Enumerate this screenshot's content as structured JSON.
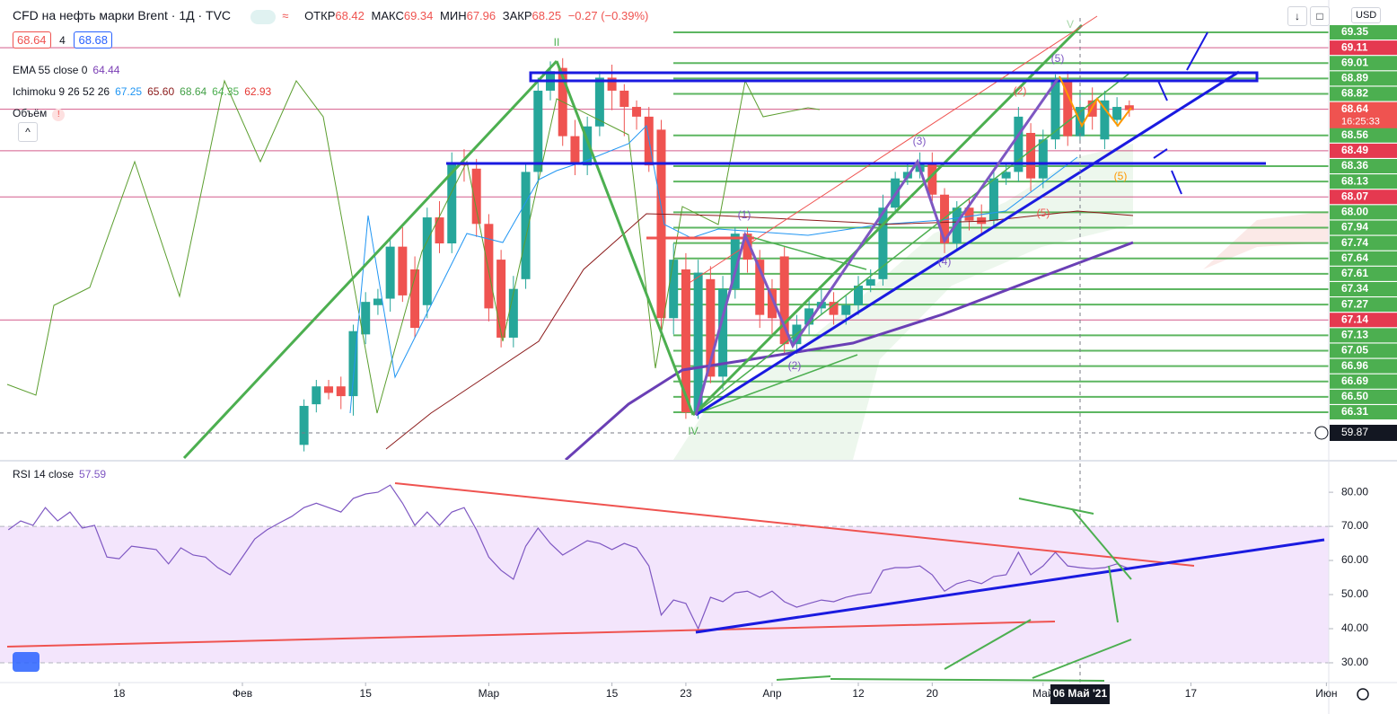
{
  "chart_data": {
    "type": "candlestick",
    "title": "CFD на нефть марки Brent · 1Д · TVC",
    "ohlc_header": {
      "open_label": "ОТКР",
      "open": "68.42",
      "high_label": "МАКС",
      "high": "69.34",
      "low_label": "МИН",
      "low": "67.96",
      "close_label": "ЗАКР",
      "close": "68.25",
      "change": "−0.27 (−0.39%)"
    },
    "sell": "68.64",
    "spread": "4",
    "buy": "68.68",
    "indicators": [
      {
        "name": "EMA 55 close 0",
        "values": [
          {
            "text": "64.44",
            "color": "#7b3fb5"
          }
        ]
      },
      {
        "name": "Ichimoku 9 26 52 26",
        "values": [
          {
            "text": "67.25",
            "color": "#2196f3"
          },
          {
            "text": "65.60",
            "color": "#8b1a1a"
          },
          {
            "text": "68.64",
            "color": "#43a047"
          },
          {
            "text": "64.35",
            "color": "#4caf50"
          },
          {
            "text": "62.93",
            "color": "#e53935"
          }
        ]
      },
      {
        "name": "Объём",
        "values": []
      }
    ],
    "currency": "USD",
    "ylim": [
      59.04,
      73.19
    ],
    "candles": {
      "x": [
        5,
        6,
        7,
        8,
        9,
        10,
        11,
        12,
        13,
        14,
        15,
        16,
        17,
        18,
        19,
        20,
        21,
        22,
        23,
        24,
        25,
        26,
        27,
        28,
        29,
        30,
        31,
        32,
        33,
        34,
        35,
        36,
        37,
        38,
        39,
        40,
        41,
        42,
        43,
        44,
        45,
        46,
        47,
        48,
        49,
        50,
        51,
        52,
        53,
        54,
        55,
        56,
        57,
        58,
        59,
        60,
        61,
        62,
        63,
        64,
        65,
        66,
        67,
        68,
        69,
        70,
        71,
        72
      ],
      "open": [
        59.5,
        60.75,
        61.3,
        61.3,
        61.0,
        62.9,
        63.8,
        64.0,
        65.6,
        64.9,
        63.8,
        66.5,
        65.7,
        68.2,
        68.0,
        66.3,
        65.2,
        62.8,
        64.6,
        67.9,
        70.4,
        71.1,
        69.0,
        68.1,
        69.3,
        70.8,
        70.4,
        69.9,
        69.6,
        69.2,
        63.4,
        64.9,
        60.5,
        64.6,
        61.6,
        64.3,
        66.0,
        65.2,
        64.3,
        65.3,
        62.6,
        63.2,
        63.7,
        63.9,
        63.5,
        63.8,
        64.4,
        64.6,
        66.8,
        67.7,
        67.9,
        68.2,
        67.2,
        65.7,
        66.8,
        66.5,
        66.4,
        67.7,
        67.9,
        69.1,
        67.7,
        68.9,
        70.7,
        69.0,
        70.1,
        68.9,
        69.5,
        69.95
      ],
      "high": [
        60.9,
        61.5,
        61.5,
        61.6,
        63.2,
        64.2,
        64.3,
        65.8,
        66.2,
        65.3,
        66.8,
        67.0,
        68.5,
        68.6,
        68.3,
        66.6,
        65.5,
        64.7,
        68.2,
        70.8,
        71.3,
        71.4,
        69.5,
        69.6,
        71.0,
        71.2,
        70.6,
        70.1,
        69.9,
        69.5,
        65.7,
        65.4,
        65.2,
        65.0,
        64.7,
        66.2,
        66.2,
        65.5,
        64.6,
        65.6,
        63.5,
        64.0,
        64.3,
        64.2,
        64.1,
        64.7,
        64.9,
        67.2,
        67.9,
        68.2,
        68.5,
        68.5,
        67.4,
        67.0,
        67.1,
        66.9,
        67.9,
        68.2,
        69.9,
        69.4,
        69.2,
        70.9,
        71.0,
        70.3,
        70.5,
        70.4,
        70.2,
        70.1
      ],
      "low": [
        59.3,
        60.5,
        60.9,
        60.6,
        60.4,
        62.6,
        63.5,
        63.6,
        63.9,
        62.8,
        63.4,
        65.4,
        65.4,
        67.6,
        65.9,
        63.3,
        62.5,
        62.5,
        64.3,
        67.6,
        70.1,
        68.7,
        67.8,
        67.8,
        69.0,
        69.8,
        69.0,
        69.2,
        67.9,
        63.0,
        62.9,
        60.3,
        60.3,
        61.4,
        61.2,
        64.0,
        64.8,
        63.1,
        62.9,
        62.3,
        62.3,
        62.9,
        63.5,
        63.2,
        63.2,
        63.5,
        64.2,
        64.4,
        66.6,
        67.5,
        67.7,
        67.0,
        65.4,
        65.5,
        66.1,
        66.0,
        66.2,
        67.5,
        67.6,
        67.3,
        67.4,
        68.6,
        68.7,
        68.8,
        69.2,
        68.6,
        69.3,
        69.6
      ],
      "close": [
        60.7,
        61.3,
        61.1,
        61.0,
        63.0,
        63.9,
        64.0,
        65.6,
        64.1,
        63.1,
        66.5,
        65.7,
        68.2,
        68.1,
        66.3,
        63.7,
        62.8,
        64.3,
        67.9,
        70.4,
        71.0,
        69.0,
        68.2,
        69.3,
        70.8,
        70.4,
        69.9,
        69.6,
        68.1,
        63.4,
        65.2,
        60.5,
        64.8,
        61.6,
        64.3,
        66.0,
        65.2,
        63.5,
        63.4,
        62.6,
        63.2,
        63.7,
        63.9,
        63.5,
        63.8,
        64.4,
        64.6,
        66.8,
        67.7,
        67.9,
        68.2,
        67.2,
        65.7,
        66.8,
        66.4,
        66.3,
        67.7,
        67.9,
        69.6,
        67.7,
        68.9,
        70.7,
        69.0,
        69.9,
        69.6,
        70.1,
        69.9,
        69.8
      ],
      "up_color": "#26a69a",
      "down_color": "#ef5350"
    },
    "price_labels": [
      {
        "label": "69.35",
        "color": "#4caf50"
      },
      {
        "label": "69.11",
        "color": "#e53950"
      },
      {
        "label": "69.01",
        "color": "#4caf50"
      },
      {
        "label": "68.89",
        "color": "#4caf50"
      },
      {
        "label": "68.82",
        "color": "#4caf50"
      },
      {
        "label": "68.64",
        "color": "#ef5350",
        "countdown": "16:25:33"
      },
      {
        "label": "68.56",
        "color": "#4caf50"
      },
      {
        "label": "68.49",
        "color": "#e53950"
      },
      {
        "label": "68.36",
        "color": "#4caf50"
      },
      {
        "label": "68.13",
        "color": "#4caf50"
      },
      {
        "label": "68.07",
        "color": "#e53950"
      },
      {
        "label": "68.00",
        "color": "#4caf50"
      },
      {
        "label": "67.94",
        "color": "#4caf50"
      },
      {
        "label": "67.74",
        "color": "#4caf50"
      },
      {
        "label": "67.64",
        "color": "#4caf50"
      },
      {
        "label": "67.61",
        "color": "#4caf50"
      },
      {
        "label": "67.34",
        "color": "#4caf50"
      },
      {
        "label": "67.27",
        "color": "#4caf50"
      },
      {
        "label": "67.14",
        "color": "#e53950"
      },
      {
        "label": "67.13",
        "color": "#4caf50"
      },
      {
        "label": "67.05",
        "color": "#4caf50"
      },
      {
        "label": "66.96",
        "color": "#4caf50"
      },
      {
        "label": "66.69",
        "color": "#4caf50"
      },
      {
        "label": "66.50",
        "color": "#4caf50"
      },
      {
        "label": "66.31",
        "color": "#4caf50"
      }
    ],
    "crosshair_price": 59.87,
    "crosshair_time": {
      "value": 68,
      "label": "06 Май '21"
    },
    "time_ticks": [
      {
        "value": -10,
        "label": "18"
      },
      {
        "value": 0,
        "label": "Фев"
      },
      {
        "value": 10,
        "label": "15"
      },
      {
        "value": 20,
        "label": "Мар"
      },
      {
        "value": 30,
        "label": "15"
      },
      {
        "value": 36,
        "label": "23"
      },
      {
        "value": 43,
        "label": "Апр"
      },
      {
        "value": 50,
        "label": "12"
      },
      {
        "value": 56,
        "label": "20"
      },
      {
        "value": 65,
        "label": "Май"
      },
      {
        "value": 77,
        "label": "17"
      },
      {
        "value": 88,
        "label": "Июн"
      }
    ],
    "waves": [
      "II",
      "IV",
      "V",
      "(1)",
      "(2)",
      "(3)",
      "(4)",
      "(5)",
      "(2)",
      "(5)",
      "(5)"
    ],
    "rsi": {
      "name": "RSI 14 close",
      "last": "57.59",
      "color": "#7e57c2",
      "ylim": [
        24.2,
        87.4
      ],
      "yticks": [
        {
          "value": 30,
          "label": "30.00"
        },
        {
          "value": 40,
          "label": "40.00"
        },
        {
          "value": 50,
          "label": "50.00"
        },
        {
          "value": 60,
          "label": "60.00"
        },
        {
          "value": 70,
          "label": "70.00"
        },
        {
          "value": 80,
          "label": "80.00"
        }
      ],
      "band": [
        30,
        70
      ],
      "x": [
        -19,
        -18,
        -17,
        -16,
        -15,
        -14,
        -13,
        -12,
        -11,
        -10,
        -9,
        -8,
        -7,
        -6,
        -5,
        -4,
        -3,
        -2,
        -1,
        0,
        1,
        2,
        3,
        4,
        5,
        6,
        7,
        8,
        9,
        10,
        11,
        12,
        13,
        14,
        15,
        16,
        17,
        18,
        19,
        20,
        21,
        22,
        23,
        24,
        25,
        26,
        27,
        28,
        29,
        30,
        31,
        32,
        33,
        34,
        35,
        36,
        37,
        38,
        39,
        40,
        41,
        42,
        43,
        44,
        45,
        46,
        47,
        48,
        49,
        50,
        51,
        52,
        53,
        54,
        55,
        56,
        57,
        58,
        59,
        60,
        61,
        62,
        63,
        64,
        65,
        66,
        67,
        68,
        69,
        70,
        71,
        72
      ],
      "values": [
        69,
        71.6,
        70.3,
        75.5,
        71.6,
        74.2,
        69.5,
        70.3,
        61,
        60.5,
        64.2,
        63.7,
        63.2,
        59,
        63.7,
        61.6,
        61,
        57.9,
        55.8,
        61,
        66.3,
        69,
        71,
        72.9,
        75.5,
        76.8,
        75.5,
        74.2,
        78.2,
        79.5,
        80,
        82.1,
        76.8,
        70.3,
        74.2,
        70.3,
        74.2,
        75.5,
        69,
        61,
        57.1,
        54.5,
        64.2,
        69.5,
        65,
        61.6,
        63.7,
        65.8,
        65,
        63.2,
        65,
        63.7,
        58.4,
        44,
        48.4,
        47.4,
        40,
        49.2,
        47.9,
        50.5,
        51,
        49.2,
        51,
        47.9,
        46.3,
        47.4,
        48.4,
        47.9,
        49.2,
        50,
        50.5,
        57.1,
        57.9,
        57.9,
        58.4,
        55.8,
        51,
        53.2,
        54.2,
        53.2,
        55.3,
        55.8,
        62.4,
        55.8,
        58.4,
        62.4,
        58.4,
        57.9,
        57.6,
        57.9,
        59,
        57.6
      ]
    }
  }
}
